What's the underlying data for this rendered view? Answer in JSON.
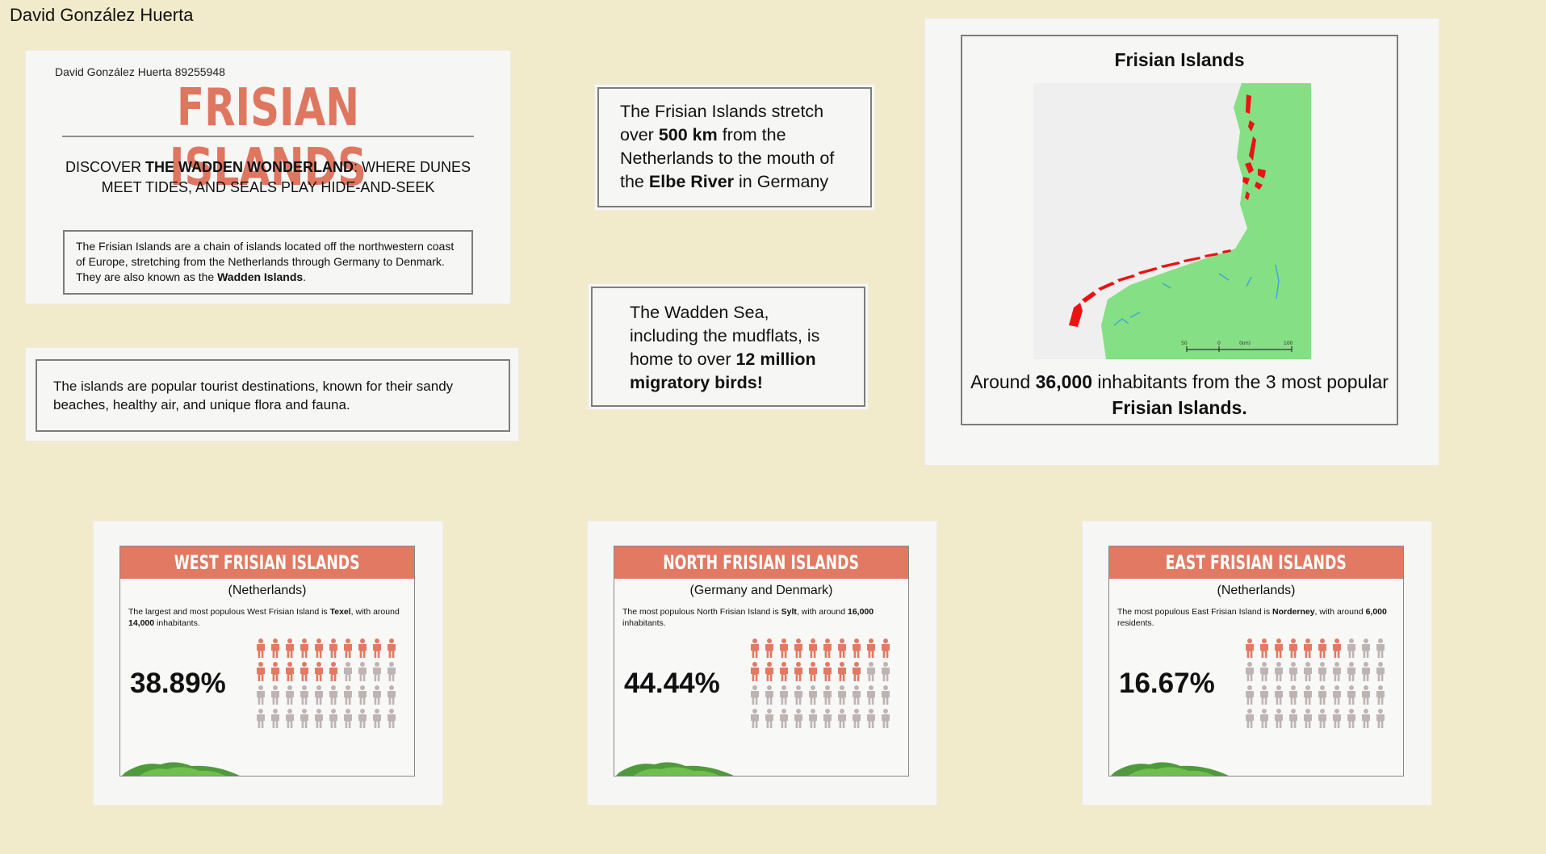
{
  "board_owner": "David González Huerta",
  "intro_card": {
    "author": "David González Huerta 89255948",
    "title": "FRISIAN ISLANDS",
    "tagline_a": "Discover ",
    "tagline_b": "the Wadden Wonderland",
    "tagline_c": ": where dunes meet tides, and seals play hide-and-seek",
    "desc_a": "The Frisian Islands are a chain of islands located off the northwestern coast of Europe, stretching from the Netherlands through Germany to Denmark. They are also known as the ",
    "desc_b": "Wadden Islands",
    "desc_c": "."
  },
  "tourism_card": {
    "text": "The islands are popular tourist destinations, known for their sandy beaches, healthy air, and unique flora and fauna."
  },
  "stretch_fact": {
    "a": "The Frisian Islands stretch over ",
    "b": "500 km",
    "c": " from the Netherlands to the mouth of the ",
    "d": "Elbe River",
    "e": " in Germany"
  },
  "wadden_fact": {
    "a": "The Wadden Sea, including the mudflats, is home to over ",
    "b": "12 million migratory birds!"
  },
  "map_card": {
    "title": "Frisian Islands",
    "caption_a": "Around ",
    "caption_b": "36,000",
    "caption_c": " inhabitants from the 3 most popular ",
    "caption_d": "Frisian Islands.",
    "scale_labels": [
      "50",
      "0",
      "(km)",
      "100"
    ]
  },
  "groups": [
    {
      "title": "WEST FRISIAN ISLANDS",
      "region": "(Netherlands)",
      "text_a": "The largest and most populous West Frisian Island is ",
      "text_b": "Texel",
      "text_c": ", with around ",
      "text_d": "14,000",
      "text_e": " inhabitants.",
      "percent": "38.89%",
      "fraction": 0.3889
    },
    {
      "title": "NORTH FRISIAN ISLANDS",
      "region": "(Germany and Denmark)",
      "text_a": "The most populous North Frisian Island is ",
      "text_b": "Sylt",
      "text_c": ", with around ",
      "text_d": "16,000",
      "text_e": " inhabitants.",
      "percent": "44.44%",
      "fraction": 0.4444
    },
    {
      "title": "EAST FRISIAN ISLANDS",
      "region": "(Netherlands)",
      "text_a": "The most populous East Frisian Island is ",
      "text_b": "Norderney",
      "text_c": ", with around ",
      "text_d": "6,000",
      "text_e": " residents.",
      "percent": "16.67%",
      "fraction": 0.1667
    }
  ],
  "colors": {
    "background": "#f2ebcb",
    "accent": "#e27962",
    "person_inactive": "#bfb4b4",
    "land": "#85df84",
    "islands": "#ee1111"
  }
}
